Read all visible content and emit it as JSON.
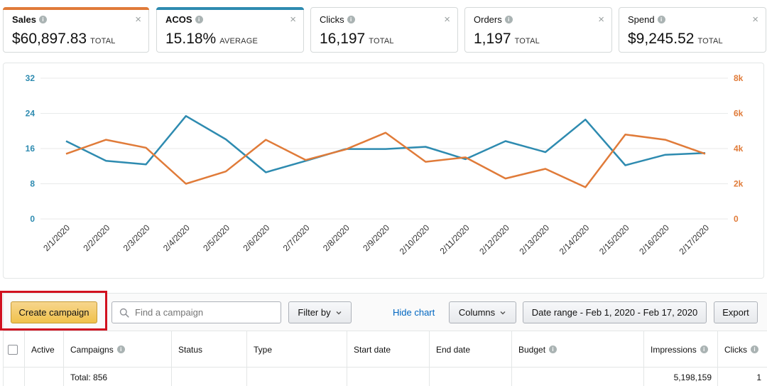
{
  "metrics": [
    {
      "label": "Sales",
      "value": "$60,897.83",
      "suffix": "TOTAL",
      "color": "#e07b39",
      "selected": true
    },
    {
      "label": "ACOS",
      "value": "15.18%",
      "suffix": "AVERAGE",
      "color": "#2e8bb0",
      "selected": true
    },
    {
      "label": "Clicks",
      "value": "16,197",
      "suffix": "TOTAL",
      "color": "",
      "selected": false
    },
    {
      "label": "Orders",
      "value": "1,197",
      "suffix": "TOTAL",
      "color": "",
      "selected": false
    },
    {
      "label": "Spend",
      "value": "$9,245.52",
      "suffix": "TOTAL",
      "color": "",
      "selected": false
    }
  ],
  "chart_data": {
    "type": "line",
    "categories": [
      "2/1/2020",
      "2/2/2020",
      "2/3/2020",
      "2/4/2020",
      "2/5/2020",
      "2/6/2020",
      "2/7/2020",
      "2/8/2020",
      "2/9/2020",
      "2/10/2020",
      "2/11/2020",
      "2/12/2020",
      "2/13/2020",
      "2/14/2020",
      "2/15/2020",
      "2/16/2020",
      "2/17/2020"
    ],
    "left_axis": {
      "ticks": [
        "0",
        "8",
        "16",
        "24",
        "32"
      ],
      "range": [
        0,
        32
      ],
      "color": "#2e8bb0"
    },
    "right_axis": {
      "ticks": [
        "0",
        "2k",
        "4k",
        "6k",
        "8k"
      ],
      "range": [
        0,
        8000
      ],
      "color": "#e07b39"
    },
    "series": [
      {
        "name": "ACOS",
        "axis": "left",
        "color": "#2e8bb0",
        "values": [
          17.7,
          13.2,
          12.4,
          23.4,
          18.1,
          10.6,
          13.2,
          15.9,
          15.9,
          16.4,
          13.6,
          17.7,
          15.2,
          22.6,
          12.2,
          14.6,
          15.0
        ]
      },
      {
        "name": "Sales",
        "axis": "right",
        "color": "#e07b39",
        "values": [
          3700,
          4500,
          4050,
          2000,
          2700,
          4500,
          3350,
          3950,
          4900,
          3250,
          3500,
          2300,
          2850,
          1800,
          4800,
          4500,
          3700
        ]
      }
    ]
  },
  "toolbar": {
    "create_label": "Create campaign",
    "search_placeholder": "Find a campaign",
    "filter_label": "Filter by",
    "hide_chart_label": "Hide chart",
    "columns_label": "Columns",
    "date_range_label": "Date range - Feb 1, 2020 - Feb 17, 2020",
    "export_label": "Export"
  },
  "table": {
    "headers": {
      "active": "Active",
      "campaigns": "Campaigns",
      "status": "Status",
      "type": "Type",
      "start_date": "Start date",
      "end_date": "End date",
      "budget": "Budget",
      "impressions": "Impressions",
      "clicks": "Clicks"
    },
    "total_row": {
      "label": "Total: 856",
      "impressions": "5,198,159",
      "clicks": "1"
    }
  },
  "colors": {
    "accent_blue": "#2e8bb0",
    "accent_orange": "#e07b39",
    "link": "#0066c0",
    "highlight": "#d1111f"
  }
}
